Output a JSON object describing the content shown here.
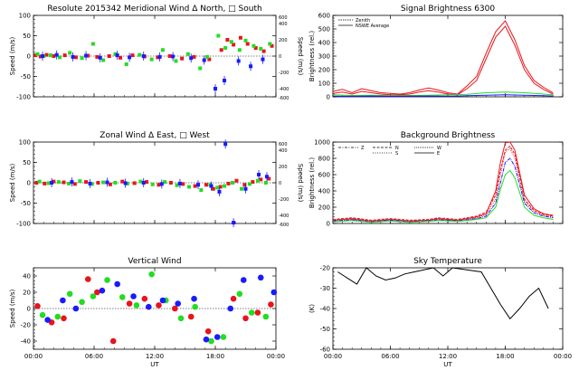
{
  "chart_data": [
    {
      "type": "scatter",
      "title": "Resolute   2015342     Meridional Wind   Δ North, □ South",
      "ylabel": "Speed (m/s)",
      "ylabel_right": "Speed (m/s)",
      "ylim": [
        -100,
        100
      ],
      "yticks": [
        -100,
        -50,
        0,
        50,
        100
      ],
      "ylim_right": [
        -500,
        500
      ],
      "yticks_right": [
        -600,
        -400,
        -200,
        0,
        200,
        400,
        600
      ],
      "xlim": [
        0,
        24
      ],
      "xticks": [
        0,
        6,
        12,
        18,
        24
      ],
      "series": [
        {
          "name": "red",
          "color": "#e8141c",
          "x": [
            0.2,
            0.7,
            1.3,
            2.0,
            3.1,
            4.2,
            5.4,
            6.3,
            7.5,
            8.6,
            9.8,
            11.0,
            12.3,
            13.5,
            14.7,
            15.9,
            17.4,
            18.6,
            19.2,
            19.8,
            20.5,
            21.2,
            22.0,
            22.8,
            23.6
          ],
          "y": [
            2,
            -1,
            3,
            0,
            2,
            -3,
            1,
            -2,
            0,
            -4,
            2,
            -1,
            -3,
            0,
            -6,
            -2,
            -8,
            15,
            40,
            28,
            45,
            30,
            20,
            12,
            25
          ]
        },
        {
          "name": "green",
          "color": "#22dd22",
          "x": [
            0.4,
            1.0,
            1.7,
            2.6,
            3.6,
            4.8,
            5.9,
            6.9,
            8.1,
            9.2,
            10.5,
            11.7,
            12.8,
            14.1,
            15.3,
            16.5,
            17.2,
            18.3,
            19.0,
            19.6,
            20.4,
            21.0,
            21.8,
            22.5,
            23.4
          ],
          "y": [
            5,
            0,
            2,
            -3,
            8,
            -5,
            30,
            -10,
            5,
            -20,
            3,
            -8,
            15,
            -12,
            5,
            -30,
            -2,
            50,
            20,
            35,
            15,
            38,
            25,
            18,
            30
          ]
        },
        {
          "name": "blue",
          "color": "#1a1aff",
          "x": [
            0.9,
            2.3,
            3.9,
            5.2,
            6.6,
            8.3,
            9.5,
            10.9,
            12.5,
            13.8,
            15.6,
            16.9,
            18.0,
            18.9,
            20.3,
            21.5,
            22.7
          ],
          "y": [
            0,
            3,
            -2,
            1,
            -4,
            2,
            -3,
            0,
            -2,
            -1,
            -5,
            -10,
            -80,
            -60,
            -12,
            -25,
            -8
          ]
        }
      ]
    },
    {
      "type": "line",
      "title": "Signal Brightness      6300",
      "ylabel": "Brightness (rel.)",
      "ylim": [
        0,
        600
      ],
      "yticks": [
        0,
        100,
        200,
        300,
        400,
        500,
        600
      ],
      "xlim": [
        0,
        24
      ],
      "xticks": [
        0,
        6,
        12,
        18,
        24
      ],
      "legend": [
        "Zenith",
        "NSWE Average"
      ],
      "series": [
        {
          "name": "Zenith",
          "color": "#e8141c",
          "x": [
            0,
            1,
            2,
            3,
            4,
            5,
            6,
            7,
            8,
            9,
            10,
            11,
            12,
            13,
            14,
            15,
            16,
            17,
            18,
            19,
            20,
            21,
            22,
            23
          ],
          "y": [
            40,
            55,
            30,
            60,
            45,
            30,
            25,
            20,
            30,
            50,
            65,
            50,
            30,
            20,
            80,
            150,
            320,
            480,
            560,
            420,
            230,
            120,
            70,
            30
          ]
        },
        {
          "name": "NSWE Average",
          "color": "#e8141c",
          "x": [
            0,
            1,
            2,
            3,
            4,
            5,
            6,
            7,
            8,
            9,
            10,
            11,
            12,
            13,
            14,
            15,
            16,
            17,
            18,
            19,
            20,
            21,
            22,
            23
          ],
          "y": [
            25,
            35,
            20,
            40,
            30,
            20,
            15,
            15,
            20,
            35,
            45,
            35,
            20,
            15,
            60,
            120,
            280,
            440,
            520,
            380,
            200,
            100,
            55,
            20
          ]
        },
        {
          "name": "green",
          "color": "#22dd22",
          "x": [
            0,
            2,
            4,
            6,
            8,
            10,
            12,
            14,
            16,
            18,
            20,
            22,
            23
          ],
          "y": [
            15,
            10,
            12,
            8,
            10,
            12,
            15,
            18,
            30,
            35,
            30,
            20,
            15
          ]
        },
        {
          "name": "blue",
          "color": "#1a1aff",
          "x": [
            0,
            2,
            4,
            6,
            8,
            10,
            12,
            14,
            16,
            18,
            20,
            22,
            23
          ],
          "y": [
            5,
            4,
            6,
            4,
            5,
            6,
            5,
            8,
            12,
            15,
            12,
            8,
            6
          ]
        }
      ]
    },
    {
      "type": "scatter",
      "title": "Zonal Wind      Δ East, □ West",
      "ylabel": "Speed (m/s)",
      "ylabel_right": "Speed (m/s)",
      "ylim": [
        -100,
        100
      ],
      "yticks": [
        -100,
        -50,
        0,
        50,
        100
      ],
      "ylim_right": [
        -500,
        500
      ],
      "yticks_right": [
        -600,
        -400,
        -200,
        0,
        200,
        400,
        600
      ],
      "xlim": [
        0,
        24
      ],
      "xticks": [
        0,
        6,
        12,
        18,
        24
      ],
      "series": [
        {
          "name": "red",
          "color": "#e8141c",
          "x": [
            0.3,
            1.1,
            2.0,
            3.0,
            4.1,
            5.2,
            6.4,
            7.6,
            8.8,
            10.0,
            11.2,
            12.4,
            13.6,
            14.8,
            16.0,
            17.1,
            17.8,
            18.5,
            19.3,
            20.1,
            20.9,
            21.7,
            22.5,
            23.3
          ],
          "y": [
            0,
            -2,
            3,
            1,
            -3,
            2,
            0,
            -4,
            3,
            -1,
            2,
            -5,
            0,
            -3,
            -8,
            -5,
            -15,
            -10,
            -2,
            5,
            -5,
            2,
            8,
            10
          ]
        },
        {
          "name": "green",
          "color": "#22dd22",
          "x": [
            0.6,
            1.5,
            2.5,
            3.5,
            4.6,
            5.8,
            6.9,
            8.1,
            9.3,
            10.6,
            11.8,
            13.0,
            14.2,
            15.4,
            16.6,
            17.5,
            18.2,
            18.9,
            19.7,
            20.6,
            21.4,
            22.2,
            23.0
          ],
          "y": [
            3,
            -1,
            2,
            -2,
            4,
            -3,
            1,
            0,
            -2,
            3,
            -4,
            2,
            -6,
            -10,
            -18,
            -5,
            -12,
            -8,
            0,
            -15,
            -3,
            5,
            0
          ]
        },
        {
          "name": "blue",
          "color": "#1a1aff",
          "x": [
            1.8,
            3.8,
            5.6,
            7.3,
            9.1,
            10.9,
            12.7,
            14.5,
            16.3,
            17.6,
            18.4,
            19.0,
            19.8,
            21.0,
            22.3,
            23.1
          ],
          "y": [
            0,
            2,
            -2,
            1,
            -1,
            0,
            -3,
            -2,
            -5,
            -8,
            -22,
            95,
            -98,
            -15,
            20,
            15
          ]
        }
      ]
    },
    {
      "type": "line",
      "title": "Background Brightness",
      "ylabel": "Brightness (rel.)",
      "ylim": [
        0,
        1000
      ],
      "yticks": [
        0,
        200,
        400,
        600,
        800,
        1000
      ],
      "xlim": [
        0,
        24
      ],
      "xticks": [
        0,
        6,
        12,
        18,
        24
      ],
      "legend": [
        "Z",
        "N",
        "S",
        "W",
        "E"
      ],
      "series": [
        {
          "name": "Z",
          "color": "#e8141c",
          "x": [
            0,
            2,
            4,
            6,
            8,
            10,
            11,
            12,
            13,
            14,
            15,
            16,
            17,
            17.5,
            18,
            18.5,
            19,
            20,
            21,
            22,
            23
          ],
          "y": [
            40,
            60,
            30,
            50,
            30,
            40,
            60,
            50,
            40,
            60,
            80,
            120,
            400,
            750,
            990,
            1000,
            900,
            350,
            180,
            120,
            100
          ]
        },
        {
          "name": "N",
          "color": "#e8141c",
          "x": [
            0,
            2,
            4,
            6,
            8,
            10,
            11,
            12,
            13,
            14,
            15,
            16,
            17,
            17.5,
            18,
            18.5,
            19,
            20,
            21,
            22,
            23
          ],
          "y": [
            50,
            70,
            40,
            60,
            40,
            50,
            70,
            60,
            50,
            70,
            90,
            140,
            350,
            650,
            900,
            950,
            850,
            300,
            160,
            110,
            90
          ]
        },
        {
          "name": "S",
          "color": "#e8141c",
          "x": [
            0,
            2,
            4,
            6,
            8,
            10,
            11,
            12,
            13,
            14,
            15,
            16,
            17,
            17.5,
            18,
            18.5,
            19,
            20,
            21,
            22,
            23
          ],
          "y": [
            35,
            50,
            25,
            45,
            25,
            35,
            50,
            45,
            35,
            50,
            70,
            110,
            300,
            600,
            880,
            920,
            800,
            280,
            150,
            100,
            80
          ]
        },
        {
          "name": "W",
          "color": "#1a1aff",
          "x": [
            0,
            2,
            4,
            6,
            8,
            10,
            11,
            12,
            13,
            14,
            15,
            16,
            17,
            17.5,
            18,
            18.5,
            19,
            20,
            21,
            22,
            23
          ],
          "y": [
            30,
            45,
            20,
            40,
            20,
            30,
            45,
            40,
            30,
            45,
            60,
            90,
            250,
            500,
            750,
            800,
            700,
            250,
            130,
            90,
            70
          ]
        },
        {
          "name": "E",
          "color": "#22dd22",
          "x": [
            0,
            2,
            4,
            6,
            8,
            10,
            11,
            12,
            13,
            14,
            15,
            16,
            17,
            17.5,
            18,
            18.5,
            19,
            20,
            21,
            22,
            23
          ],
          "y": [
            20,
            35,
            15,
            30,
            15,
            25,
            35,
            30,
            25,
            35,
            50,
            70,
            200,
            420,
            600,
            650,
            560,
            200,
            100,
            70,
            50
          ]
        }
      ]
    },
    {
      "type": "scatter",
      "title": "Vertical Wind",
      "ylabel": "Speed (m/s)",
      "xlabel": "UT",
      "ylim": [
        -50,
        50
      ],
      "yticks": [
        -40,
        -20,
        0,
        20,
        40
      ],
      "xlim": [
        0,
        24
      ],
      "xticks": [
        0,
        6,
        12,
        18,
        24
      ],
      "xticklabels": [
        "00:00",
        "06:00",
        "12:00",
        "18:00",
        "00:00"
      ],
      "series": [
        {
          "name": "red",
          "color": "#e8141c",
          "x": [
            0.4,
            1.8,
            3.0,
            5.4,
            6.3,
            7.9,
            9.5,
            11.0,
            12.4,
            14.0,
            15.6,
            17.3,
            19.8,
            21.0,
            22.2,
            23.5
          ],
          "y": [
            3,
            -17,
            -12,
            36,
            20,
            -40,
            6,
            12,
            4,
            0,
            -10,
            -28,
            12,
            -12,
            -5,
            5
          ]
        },
        {
          "name": "green",
          "color": "#22dd22",
          "x": [
            0.9,
            2.4,
            3.6,
            4.8,
            5.9,
            7.3,
            8.8,
            10.2,
            11.7,
            13.1,
            14.6,
            16.0,
            17.6,
            18.8,
            20.4,
            21.6,
            23.0
          ],
          "y": [
            -8,
            -10,
            18,
            8,
            15,
            35,
            14,
            4,
            42,
            10,
            -12,
            2,
            -40,
            -35,
            18,
            -5,
            -10
          ]
        },
        {
          "name": "blue",
          "color": "#1a1aff",
          "x": [
            1.4,
            2.9,
            4.2,
            6.8,
            8.3,
            9.9,
            11.4,
            12.8,
            14.3,
            15.9,
            17.1,
            18.2,
            19.5,
            20.8,
            22.5,
            23.8
          ],
          "y": [
            -14,
            10,
            0,
            22,
            30,
            15,
            2,
            10,
            6,
            12,
            -38,
            -35,
            0,
            35,
            38,
            20
          ]
        }
      ]
    },
    {
      "type": "line",
      "title": "Sky Temperature",
      "ylabel": "(K)",
      "xlabel": "UT",
      "ylim": [
        -60,
        -20
      ],
      "yticks": [
        -60,
        -50,
        -40,
        -30,
        -20
      ],
      "xlim": [
        0,
        24
      ],
      "xticks": [
        0,
        6,
        12,
        18,
        24
      ],
      "xticklabels": [
        "00:00",
        "06:00",
        "12:00",
        "18:00",
        "00:00"
      ],
      "series": [
        {
          "name": "sky",
          "color": "#000000",
          "x": [
            0.5,
            1.5,
            2.5,
            3.5,
            4.5,
            5.5,
            6.5,
            7.5,
            8.5,
            9.5,
            10.5,
            11.5,
            12.5,
            15.5,
            16.5,
            17.5,
            18.5,
            19.5,
            20.5,
            21.5,
            22.5
          ],
          "y": [
            -22,
            -25,
            -28,
            -20,
            -24,
            -26,
            -25,
            -23,
            -22,
            -21,
            -20,
            -24,
            -20,
            -22,
            -30,
            -38,
            -45,
            -40,
            -34,
            -30,
            -40
          ]
        }
      ]
    }
  ]
}
